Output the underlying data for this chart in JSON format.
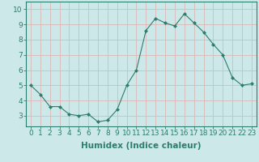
{
  "x": [
    0,
    1,
    2,
    3,
    4,
    5,
    6,
    7,
    8,
    9,
    10,
    11,
    12,
    13,
    14,
    15,
    16,
    17,
    18,
    19,
    20,
    21,
    22,
    23
  ],
  "y": [
    5.0,
    4.4,
    3.6,
    3.6,
    3.1,
    3.0,
    3.1,
    2.6,
    2.7,
    3.4,
    5.0,
    6.0,
    8.6,
    9.4,
    9.1,
    8.9,
    9.7,
    9.1,
    8.5,
    7.7,
    7.0,
    5.5,
    5.0,
    5.1
  ],
  "line_color": "#2d7d6f",
  "marker": "D",
  "marker_size": 2.0,
  "bg_color": "#cce8e8",
  "grid_color": "#dbb8b8",
  "xlabel": "Humidex (Indice chaleur)",
  "ylim": [
    2.3,
    10.5
  ],
  "xlim": [
    -0.5,
    23.5
  ],
  "yticks": [
    3,
    4,
    5,
    6,
    7,
    8,
    9,
    10
  ],
  "xticks": [
    0,
    1,
    2,
    3,
    4,
    5,
    6,
    7,
    8,
    9,
    10,
    11,
    12,
    13,
    14,
    15,
    16,
    17,
    18,
    19,
    20,
    21,
    22,
    23
  ],
  "tick_color": "#2d7d6f",
  "axis_color": "#2d7d6f",
  "xlabel_fontsize": 7.5,
  "tick_fontsize": 6.5
}
